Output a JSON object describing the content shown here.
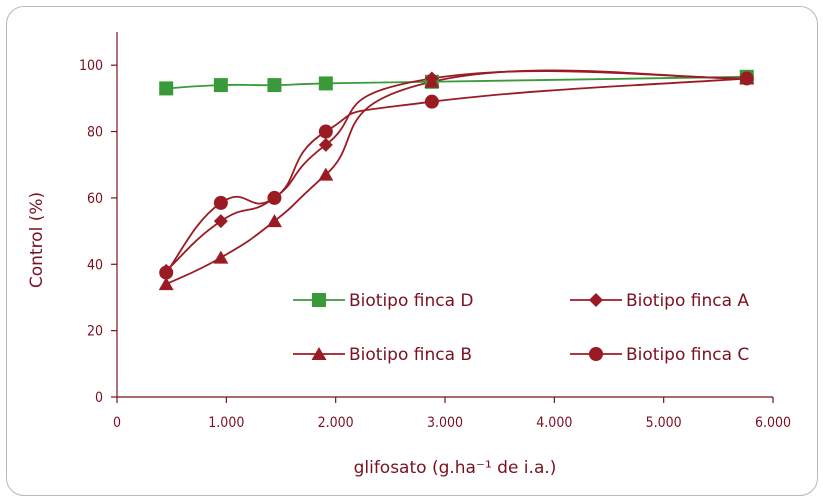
{
  "chart_data": {
    "type": "line",
    "xlabel": "glifosato (g.ha⁻¹ de i.a.)",
    "ylabel": "Control (%)",
    "xlim": [
      0,
      6000
    ],
    "ylim": [
      0,
      110
    ],
    "x_ticks": [
      0,
      1000,
      2000,
      3000,
      4000,
      5000,
      6000
    ],
    "x_tick_labels": [
      "0",
      "1.000",
      "2.000",
      "3.000",
      "4.000",
      "5.000",
      "6.000"
    ],
    "y_ticks": [
      0,
      20,
      40,
      60,
      80,
      100
    ],
    "y_tick_labels": [
      "0",
      "20",
      "40",
      "60",
      "80",
      "100"
    ],
    "grid": false,
    "legend_position": "lower-right",
    "series": [
      {
        "name": "Biotipo finca D",
        "color": "#3a9a3a",
        "marker": "square",
        "x": [
          450,
          950,
          1440,
          1910,
          2880,
          5760
        ],
        "y": [
          93,
          94,
          94,
          94.5,
          95,
          96.5
        ]
      },
      {
        "name": "Biotipo finca A",
        "color": "#9b1b24",
        "marker": "diamond",
        "x": [
          450,
          950,
          1440,
          1910,
          2880,
          5760
        ],
        "y": [
          38,
          53,
          60,
          76,
          96,
          96
        ]
      },
      {
        "name": "Biotipo finca B",
        "color": "#9b1b24",
        "marker": "triangle",
        "x": [
          450,
          950,
          1440,
          1910,
          2880,
          5760
        ],
        "y": [
          34,
          42,
          53,
          67,
          95,
          96
        ]
      },
      {
        "name": "Biotipo finca C",
        "color": "#9b1b24",
        "marker": "circle",
        "x": [
          450,
          950,
          1440,
          1910,
          2880,
          5760
        ],
        "y": [
          37.5,
          58.5,
          60,
          80,
          89,
          96
        ]
      }
    ]
  }
}
